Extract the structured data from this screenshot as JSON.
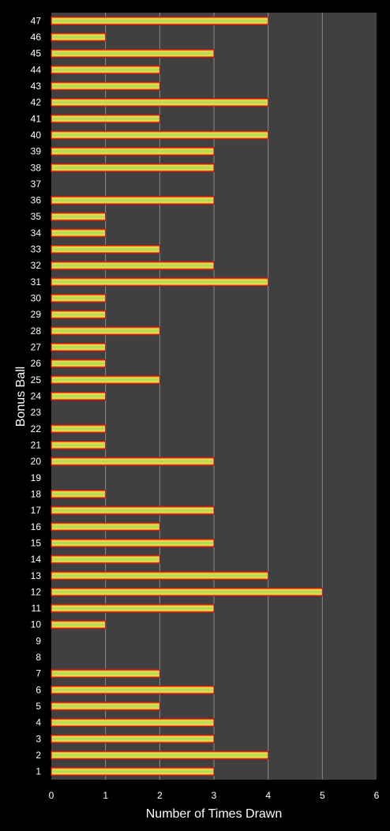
{
  "chart_data": {
    "type": "bar",
    "orientation": "horizontal",
    "xlabel": "Number of Times Drawn",
    "ylabel": "Bonus Ball",
    "xlim": [
      0,
      6
    ],
    "xticks": [
      0,
      1,
      2,
      3,
      4,
      5,
      6
    ],
    "grid": "vertical",
    "categories": [
      "1",
      "2",
      "3",
      "4",
      "5",
      "6",
      "7",
      "8",
      "9",
      "10",
      "11",
      "12",
      "13",
      "14",
      "15",
      "16",
      "17",
      "18",
      "19",
      "20",
      "21",
      "22",
      "23",
      "24",
      "25",
      "26",
      "27",
      "28",
      "29",
      "30",
      "31",
      "32",
      "33",
      "34",
      "35",
      "36",
      "37",
      "38",
      "39",
      "40",
      "41",
      "42",
      "43",
      "44",
      "45",
      "46",
      "47"
    ],
    "values": [
      3,
      4,
      3,
      3,
      2,
      3,
      2,
      0,
      0,
      1,
      3,
      5,
      4,
      2,
      3,
      2,
      3,
      1,
      0,
      3,
      1,
      1,
      0,
      1,
      2,
      1,
      1,
      2,
      1,
      1,
      4,
      3,
      2,
      1,
      1,
      3,
      0,
      3,
      3,
      4,
      2,
      4,
      2,
      2,
      3,
      1,
      4
    ],
    "colors": {
      "background": "#000000",
      "plot_area": "#404040",
      "gridline": "#8c8c8c",
      "bar_edge": "#d01010",
      "bar_mid": "#e8e040",
      "bar_center": "#a8d860",
      "text": "#ffffff"
    }
  }
}
